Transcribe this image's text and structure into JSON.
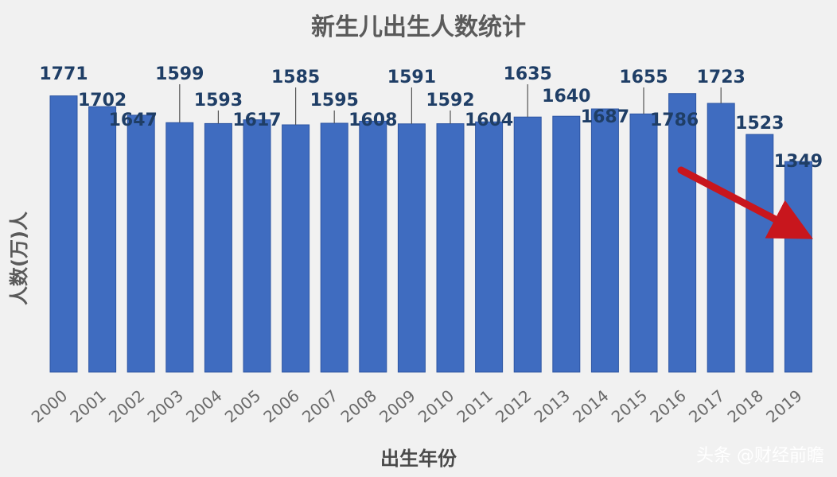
{
  "chart_data": {
    "type": "bar",
    "title": "新生儿出生人数统计",
    "xlabel": "出生年份",
    "ylabel": "人数(万)人",
    "categories": [
      "2000",
      "2001",
      "2002",
      "2003",
      "2004",
      "2005",
      "2006",
      "2007",
      "2008",
      "2009",
      "2010",
      "2011",
      "2012",
      "2013",
      "2014",
      "2015",
      "2016",
      "2017",
      "2018",
      "2019"
    ],
    "values": [
      1771,
      1702,
      1647,
      1599,
      1593,
      1617,
      1585,
      1595,
      1608,
      1591,
      1592,
      1604,
      1635,
      1640,
      1687,
      1655,
      1786,
      1723,
      1523,
      1349
    ],
    "grid": false,
    "legend": "none",
    "colors": {
      "bar": "#3f6cc0",
      "bar_edge": "#2e56a3",
      "arrow": "#c8161d",
      "text": "#1f3e66"
    }
  },
  "watermark": "头条 @财经前瞻"
}
